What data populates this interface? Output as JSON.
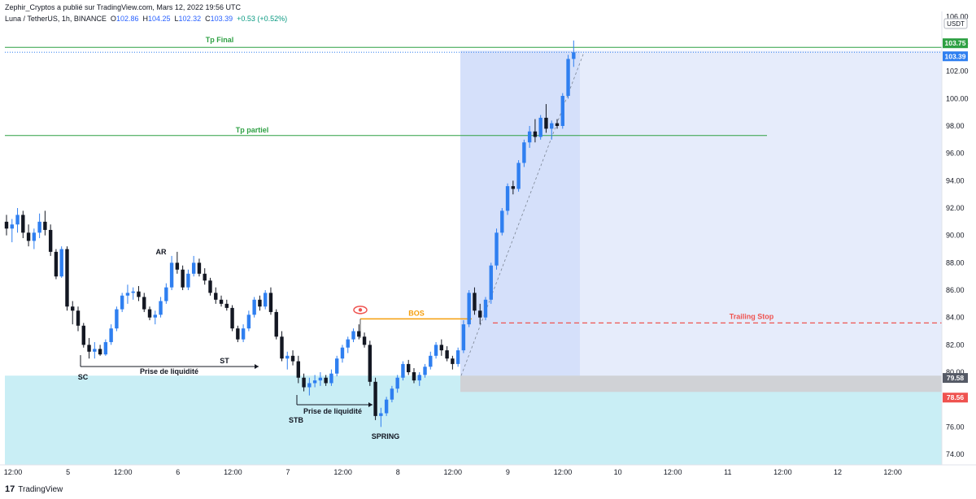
{
  "header": {
    "published": "Zephir_Cryptos a publié sur TradingView.com, Mars 12, 2022 19:56 UTC",
    "symbol": "Luna / TetherUS, 1h, BINANCE",
    "o_label": "O",
    "o_value": "102.86",
    "h_label": "H",
    "h_value": "104.25",
    "l_label": "L",
    "l_value": "102.32",
    "c_label": "C",
    "c_value": "103.39",
    "change": "+0.53 (+0.52%)"
  },
  "footer": {
    "brand": "TradingView",
    "logo": "17"
  },
  "colors": {
    "up": "#2f7ff0",
    "down": "#131722",
    "tp_line": "#2ea043",
    "bos": "#f59e0b",
    "trailing": "#ef5350",
    "zone_cyan": "#c9eef5",
    "zone_blue": "#d5e0fa",
    "zone_blue_light": "#e6ecfb",
    "grey_zone": "#d0d2d6"
  },
  "chart_data": {
    "type": "candlestick",
    "currency": "USDT",
    "ylim": [
      73,
      106
    ],
    "y_ticks": [
      74,
      76,
      78,
      80,
      82,
      84,
      86,
      88,
      90,
      92,
      94,
      96,
      98,
      100,
      102,
      104,
      106
    ],
    "y_tick_labels": [
      "74.00",
      "76.00",
      "78.00",
      "80.00",
      "82.00",
      "84.00",
      "86.00",
      "88.00",
      "90.00",
      "92.00",
      "94.00",
      "96.00",
      "98.00",
      "100.00",
      "102.00",
      "104.00",
      "106.00"
    ],
    "x_tick_labels": [
      "12:00",
      "5",
      "12:00",
      "6",
      "12:00",
      "7",
      "12:00",
      "8",
      "12:00",
      "9",
      "12:00",
      "10",
      "12:00",
      "11",
      "12:00",
      "12",
      "12:00"
    ],
    "price_badges": [
      {
        "value": "103.75",
        "color": "#2ea043"
      },
      {
        "value": "103.39",
        "color": "#2f7ff0"
      },
      {
        "value": "79.58",
        "color": "#555a66"
      },
      {
        "value": "78.56",
        "color": "#ef5350"
      }
    ],
    "levels": [
      {
        "label": "Tp Final",
        "price": 103.75
      },
      {
        "label": "Tp partiel",
        "price": 97.3
      },
      {
        "label": "BOS",
        "price": 83.9
      },
      {
        "label": "Trailing Stop",
        "price": 83.6
      }
    ],
    "annotations": [
      "SC",
      "AR",
      "ST",
      "STB",
      "SPRING",
      "Prise de liquidité",
      "Prise de liquidité"
    ],
    "candles": [
      [
        91.0,
        91.5,
        90.0,
        90.5
      ],
      [
        90.5,
        91.2,
        89.5,
        90.8
      ],
      [
        90.8,
        92.0,
        90.2,
        91.5
      ],
      [
        91.5,
        91.8,
        89.8,
        90.2
      ],
      [
        90.2,
        90.8,
        89.2,
        89.6
      ],
      [
        89.6,
        90.5,
        89.0,
        90.2
      ],
      [
        90.2,
        91.6,
        89.8,
        91.0
      ],
      [
        91.0,
        91.8,
        90.0,
        90.4
      ],
      [
        90.4,
        90.8,
        88.5,
        88.8
      ],
      [
        88.8,
        89.0,
        86.8,
        87.0
      ],
      [
        87.0,
        89.2,
        86.9,
        89.0
      ],
      [
        89.0,
        89.2,
        84.5,
        84.8
      ],
      [
        84.8,
        85.2,
        83.5,
        84.5
      ],
      [
        84.5,
        84.8,
        83.0,
        83.4
      ],
      [
        83.4,
        83.6,
        81.8,
        82.0
      ],
      [
        82.0,
        82.5,
        81.0,
        81.5
      ],
      [
        81.5,
        82.2,
        81.0,
        81.7
      ],
      [
        81.7,
        82.0,
        81.2,
        81.3
      ],
      [
        81.3,
        82.4,
        81.2,
        82.2
      ],
      [
        82.2,
        83.5,
        82.0,
        83.2
      ],
      [
        83.2,
        84.8,
        83.0,
        84.6
      ],
      [
        84.6,
        85.8,
        84.4,
        85.6
      ],
      [
        85.6,
        86.4,
        85.0,
        85.8
      ],
      [
        85.8,
        86.2,
        85.3,
        85.9
      ],
      [
        85.9,
        86.3,
        85.2,
        85.5
      ],
      [
        85.5,
        85.8,
        84.4,
        84.6
      ],
      [
        84.6,
        84.8,
        83.8,
        84.0
      ],
      [
        84.0,
        84.5,
        83.5,
        84.2
      ],
      [
        84.2,
        85.5,
        84.0,
        85.2
      ],
      [
        85.2,
        86.5,
        85.0,
        86.2
      ],
      [
        86.2,
        88.5,
        86.0,
        88.0
      ],
      [
        88.0,
        88.8,
        87.2,
        87.5
      ],
      [
        87.5,
        87.8,
        86.0,
        86.2
      ],
      [
        86.2,
        87.5,
        86.0,
        87.2
      ],
      [
        87.2,
        88.5,
        87.0,
        88.0
      ],
      [
        88.0,
        88.3,
        87.0,
        87.2
      ],
      [
        87.2,
        87.6,
        86.4,
        86.7
      ],
      [
        86.7,
        86.9,
        85.6,
        85.8
      ],
      [
        85.8,
        86.2,
        85.0,
        85.3
      ],
      [
        85.3,
        85.6,
        84.8,
        85.0
      ],
      [
        85.0,
        85.3,
        84.5,
        84.7
      ],
      [
        84.7,
        84.9,
        83.0,
        83.2
      ],
      [
        83.2,
        83.4,
        82.2,
        82.4
      ],
      [
        82.4,
        83.5,
        82.2,
        83.2
      ],
      [
        83.2,
        84.5,
        83.0,
        84.2
      ],
      [
        84.2,
        85.5,
        84.0,
        85.3
      ],
      [
        85.3,
        85.6,
        84.5,
        84.8
      ],
      [
        84.8,
        86.0,
        84.6,
        85.8
      ],
      [
        85.8,
        86.2,
        84.2,
        84.4
      ],
      [
        84.4,
        84.6,
        82.4,
        82.6
      ],
      [
        82.6,
        83.0,
        80.8,
        81.0
      ],
      [
        81.0,
        81.5,
        80.2,
        81.2
      ],
      [
        81.2,
        81.6,
        80.5,
        80.8
      ],
      [
        80.8,
        81.2,
        79.2,
        79.6
      ],
      [
        79.6,
        79.9,
        78.6,
        78.9
      ],
      [
        78.9,
        79.6,
        78.3,
        79.2
      ],
      [
        79.2,
        79.8,
        78.9,
        79.4
      ],
      [
        79.4,
        80.0,
        79.0,
        79.6
      ],
      [
        79.6,
        79.8,
        79.0,
        79.2
      ],
      [
        79.2,
        80.2,
        79.0,
        79.9
      ],
      [
        79.9,
        81.2,
        79.7,
        81.0
      ],
      [
        81.0,
        82.0,
        80.7,
        81.8
      ],
      [
        81.8,
        82.6,
        81.4,
        82.4
      ],
      [
        82.4,
        83.2,
        82.2,
        83.0
      ],
      [
        83.0,
        83.5,
        82.4,
        82.6
      ],
      [
        82.6,
        82.9,
        81.8,
        82.0
      ],
      [
        82.0,
        82.3,
        79.0,
        79.3
      ],
      [
        79.3,
        79.6,
        76.5,
        76.8
      ],
      [
        76.8,
        77.4,
        76.0,
        77.0
      ],
      [
        77.0,
        78.2,
        76.8,
        78.0
      ],
      [
        78.0,
        79.0,
        77.8,
        78.8
      ],
      [
        78.8,
        79.8,
        78.5,
        79.6
      ],
      [
        79.6,
        80.8,
        79.4,
        80.6
      ],
      [
        80.6,
        80.9,
        79.8,
        80.0
      ],
      [
        80.0,
        80.3,
        79.2,
        79.4
      ],
      [
        79.4,
        80.0,
        79.0,
        79.8
      ],
      [
        79.8,
        80.6,
        79.6,
        80.4
      ],
      [
        80.4,
        81.5,
        80.2,
        81.2
      ],
      [
        81.2,
        82.2,
        81.0,
        82.0
      ],
      [
        82.0,
        82.4,
        81.2,
        81.6
      ],
      [
        81.6,
        81.9,
        80.8,
        81.0
      ],
      [
        81.0,
        81.2,
        80.2,
        80.6
      ],
      [
        80.6,
        81.8,
        80.4,
        81.6
      ],
      [
        81.6,
        83.8,
        81.4,
        83.5
      ],
      [
        83.5,
        86.0,
        83.3,
        85.8
      ],
      [
        85.8,
        86.2,
        84.2,
        84.5
      ],
      [
        84.5,
        85.0,
        83.5,
        84.0
      ],
      [
        84.0,
        85.5,
        83.8,
        85.3
      ],
      [
        85.3,
        88.0,
        85.0,
        87.8
      ],
      [
        87.8,
        90.5,
        87.5,
        90.2
      ],
      [
        90.2,
        92.0,
        90.0,
        91.8
      ],
      [
        91.8,
        93.8,
        91.5,
        93.6
      ],
      [
        93.6,
        94.0,
        93.0,
        93.4
      ],
      [
        93.4,
        95.5,
        93.2,
        95.3
      ],
      [
        95.3,
        97.0,
        95.0,
        96.8
      ],
      [
        96.8,
        98.0,
        96.4,
        97.6
      ],
      [
        97.6,
        98.5,
        96.8,
        97.2
      ],
      [
        97.2,
        98.8,
        97.0,
        98.6
      ],
      [
        98.6,
        99.6,
        97.5,
        97.8
      ],
      [
        97.8,
        98.4,
        97.0,
        98.2
      ],
      [
        98.2,
        98.5,
        97.8,
        98.0
      ],
      [
        98.0,
        100.4,
        97.8,
        100.2
      ],
      [
        100.2,
        103.2,
        100.0,
        102.9
      ],
      [
        102.9,
        104.25,
        102.32,
        103.39
      ]
    ]
  }
}
